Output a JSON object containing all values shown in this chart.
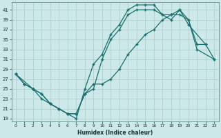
{
  "xlabel": "Humidex (Indice chaleur)",
  "bg_color": "#cce8e8",
  "line_color": "#1a6e6e",
  "grid_color": "#aacccc",
  "xlim": [
    -0.5,
    23.5
  ],
  "ylim": [
    18.5,
    42.5
  ],
  "xticks": [
    0,
    1,
    2,
    3,
    4,
    5,
    6,
    7,
    8,
    9,
    10,
    11,
    12,
    13,
    14,
    15,
    16,
    17,
    18,
    19,
    20,
    21,
    22,
    23
  ],
  "yticks": [
    19,
    21,
    23,
    25,
    27,
    29,
    31,
    33,
    35,
    37,
    39,
    41
  ],
  "curve_upper_x": [
    0,
    1,
    2,
    3,
    4,
    5,
    6,
    7,
    8,
    9,
    10,
    11,
    12,
    13,
    14,
    15,
    16,
    17,
    18,
    19,
    20,
    22
  ],
  "curve_upper_y": [
    28,
    26,
    25,
    23,
    22,
    21,
    20,
    19,
    25,
    30,
    32,
    36,
    38,
    41,
    42,
    42,
    42,
    40,
    39,
    41,
    38,
    34
  ],
  "curve_mid_x": [
    0,
    1,
    2,
    3,
    4,
    5,
    6,
    7,
    8,
    9,
    10,
    11,
    12,
    13,
    14,
    15,
    16,
    17,
    18,
    19,
    20,
    21,
    22,
    23
  ],
  "curve_mid_y": [
    28,
    26,
    25,
    24,
    22,
    21,
    20,
    20,
    24,
    25,
    31,
    35,
    37,
    40,
    41,
    41,
    41,
    40,
    40,
    41,
    39,
    34,
    34,
    31
  ],
  "curve_lower_x": [
    0,
    2,
    3,
    4,
    5,
    6,
    7,
    8,
    9,
    10,
    11,
    12,
    13,
    14,
    15,
    16,
    17,
    18,
    19,
    20,
    21,
    23
  ],
  "curve_lower_y": [
    28,
    25,
    24,
    22,
    21,
    20,
    20,
    24,
    26,
    26,
    27,
    29,
    32,
    34,
    36,
    37,
    39,
    40,
    40,
    39,
    33,
    31
  ]
}
